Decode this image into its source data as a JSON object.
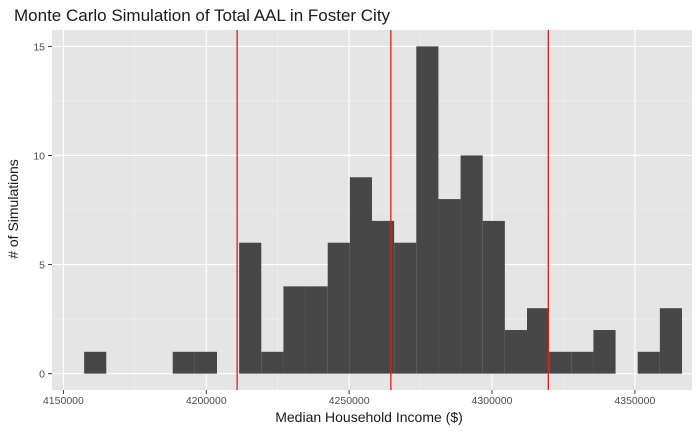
{
  "chart_data": {
    "type": "bar",
    "title": "Monte Carlo Simulation of Total AAL in Foster City",
    "xlabel": "Median Household Income ($)",
    "ylabel": "# of Simulations",
    "xlim": [
      4146000,
      4370000
    ],
    "ylim": [
      -0.75,
      15.75
    ],
    "x_ticks": [
      4150000,
      4200000,
      4250000,
      4300000,
      4350000
    ],
    "x_tick_labels": [
      "4150000",
      "4200000",
      "4250000",
      "4300000",
      "4350000"
    ],
    "y_ticks": [
      0,
      5,
      10,
      15
    ],
    "y_tick_labels": [
      "0",
      "5",
      "10",
      "15"
    ],
    "bin_width": 7750,
    "bins": [
      {
        "x0": 4157250,
        "x1": 4165000,
        "count": 1
      },
      {
        "x0": 4165000,
        "x1": 4172750,
        "count": 0
      },
      {
        "x0": 4172750,
        "x1": 4180500,
        "count": 0
      },
      {
        "x0": 4180500,
        "x1": 4188250,
        "count": 0
      },
      {
        "x0": 4188250,
        "x1": 4196000,
        "count": 1
      },
      {
        "x0": 4196000,
        "x1": 4203750,
        "count": 1
      },
      {
        "x0": 4203750,
        "x1": 4211500,
        "count": 0
      },
      {
        "x0": 4211500,
        "x1": 4219250,
        "count": 6
      },
      {
        "x0": 4219250,
        "x1": 4227000,
        "count": 1
      },
      {
        "x0": 4227000,
        "x1": 4234750,
        "count": 4
      },
      {
        "x0": 4234750,
        "x1": 4242500,
        "count": 4
      },
      {
        "x0": 4242500,
        "x1": 4250250,
        "count": 6
      },
      {
        "x0": 4250250,
        "x1": 4258000,
        "count": 9
      },
      {
        "x0": 4258000,
        "x1": 4265750,
        "count": 7
      },
      {
        "x0": 4265750,
        "x1": 4273500,
        "count": 6
      },
      {
        "x0": 4273500,
        "x1": 4281250,
        "count": 15
      },
      {
        "x0": 4281250,
        "x1": 4289000,
        "count": 8
      },
      {
        "x0": 4289000,
        "x1": 4296750,
        "count": 10
      },
      {
        "x0": 4296750,
        "x1": 4304500,
        "count": 7
      },
      {
        "x0": 4304500,
        "x1": 4312250,
        "count": 2
      },
      {
        "x0": 4312250,
        "x1": 4320000,
        "count": 3
      },
      {
        "x0": 4320000,
        "x1": 4327750,
        "count": 1
      },
      {
        "x0": 4327750,
        "x1": 4335500,
        "count": 1
      },
      {
        "x0": 4335500,
        "x1": 4343250,
        "count": 2
      },
      {
        "x0": 4343250,
        "x1": 4351000,
        "count": 0
      },
      {
        "x0": 4351000,
        "x1": 4358750,
        "count": 1
      },
      {
        "x0": 4358750,
        "x1": 4366500,
        "count": 3
      },
      {
        "x0": 4366500,
        "x1": 4374250,
        "count": 0
      }
    ],
    "vlines": [
      4210800,
      4264600,
      4319700
    ],
    "colors": {
      "panel_background": "#e5e5e5",
      "grid_major": "#ffffff",
      "grid_minor": "#f0f0f0",
      "bar_fill": "#474747",
      "vline": "#e31a1c",
      "text": "#1a1a1a",
      "tick_text": "#4d4d4d"
    },
    "grid": true
  }
}
